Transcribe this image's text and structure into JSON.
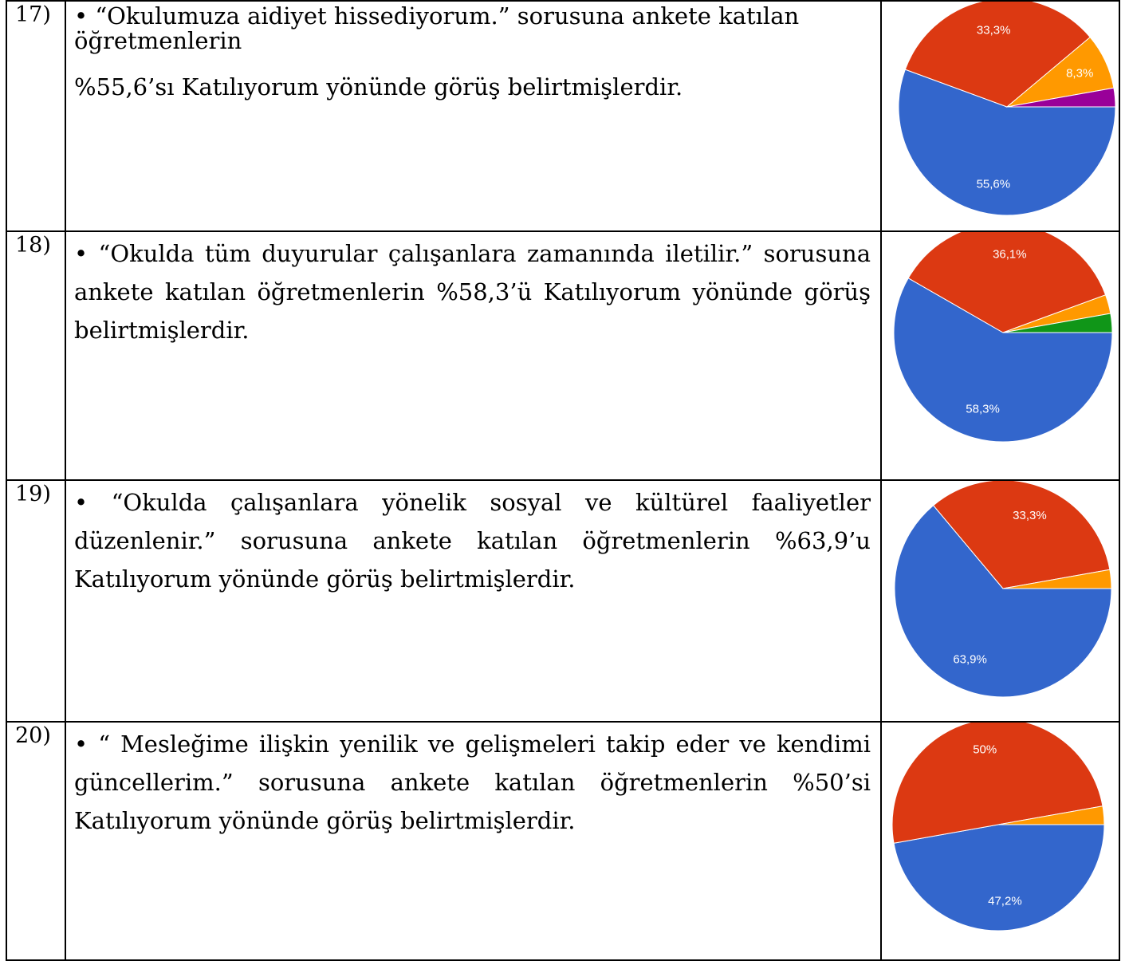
{
  "rows": [
    {
      "number": "17)",
      "question_text": "• “Okulumuza aidiyet hissediyorum.” sorusuna ankete katılan öğretmenlerin",
      "result_text": "%55,6’sı Katılıyorum yönünde görüş belirtmişlerdir."
    },
    {
      "number": "18)",
      "question_text": "• “Okulda tüm duyurular çalışanlara zamanında iletilir.” sorusuna ankete katılan öğretmenlerin %58,3’ü Katılıyorum yönünde görüş belirtmişlerdir.",
      "result_text": ""
    },
    {
      "number": "19)",
      "question_text": "• “Okulda çalışanlara yönelik sosyal ve kültürel faaliyetler düzenlenir.” sorusuna ankete katılan öğretmenlerin %63,9’u Katılıyorum yönünde görüş belirtmişlerdir.",
      "result_text": ""
    },
    {
      "number": "20)",
      "question_text": "• “ Mesleğime ilişkin yenilik ve gelişmeleri takip eder ve kendimi güncellerim.” sorusuna ankete katılan öğretmenlerin %50’si Katılıyorum yönünde görüş belirtmişlerdir.",
      "result_text": ""
    }
  ],
  "chart_data": [
    {
      "type": "pie",
      "slices": [
        {
          "value": 55.6,
          "label": "55,6%",
          "color": "#3366cc"
        },
        {
          "value": 33.3,
          "label": "33,3%",
          "color": "#dc3912"
        },
        {
          "value": 8.3,
          "label": "8,3%",
          "color": "#ff9900"
        },
        {
          "value": 2.8,
          "label": "",
          "color": "#990099"
        }
      ]
    },
    {
      "type": "pie",
      "slices": [
        {
          "value": 58.3,
          "label": "58,3%",
          "color": "#3366cc"
        },
        {
          "value": 36.1,
          "label": "36,1%",
          "color": "#dc3912"
        },
        {
          "value": 2.8,
          "label": "",
          "color": "#ff9900"
        },
        {
          "value": 2.8,
          "label": "",
          "color": "#109618"
        }
      ]
    },
    {
      "type": "pie",
      "slices": [
        {
          "value": 63.9,
          "label": "63,9%",
          "color": "#3366cc"
        },
        {
          "value": 33.3,
          "label": "33,3%",
          "color": "#dc3912"
        },
        {
          "value": 2.8,
          "label": "",
          "color": "#ff9900"
        }
      ]
    },
    {
      "type": "pie",
      "slices": [
        {
          "value": 47.2,
          "label": "47,2%",
          "color": "#3366cc"
        },
        {
          "value": 50,
          "label": "50%",
          "color": "#dc3912"
        },
        {
          "value": 2.8,
          "label": "",
          "color": "#ff9900"
        }
      ]
    }
  ]
}
